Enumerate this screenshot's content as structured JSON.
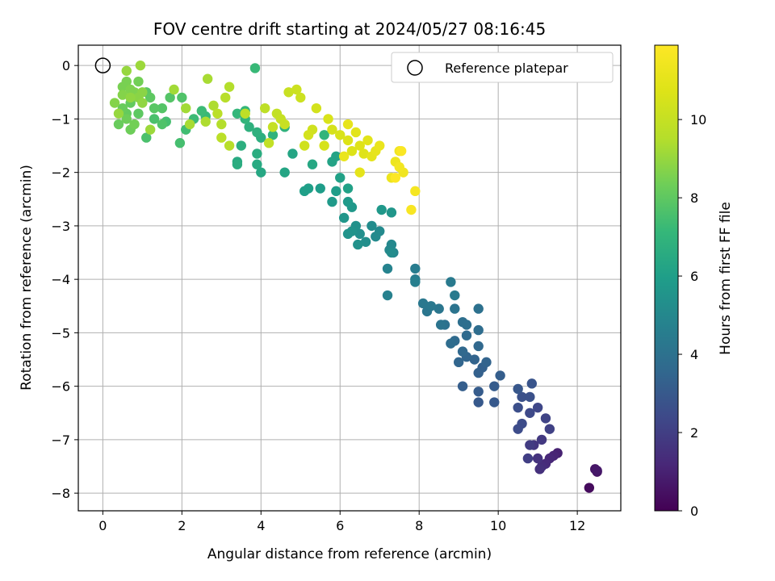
{
  "chart_data": {
    "type": "scatter",
    "title": "FOV centre drift starting at 2024/05/27 08:16:45",
    "xlabel": "Angular distance from reference (arcmin)",
    "ylabel": "Rotation from reference (arcmin)",
    "xlim": [
      -0.62,
      13.1
    ],
    "ylim": [
      -8.33,
      0.38
    ],
    "xticks": [
      0,
      2,
      4,
      6,
      8,
      10,
      12
    ],
    "yticks": [
      0,
      -1,
      -2,
      -3,
      -4,
      -5,
      -6,
      -7,
      -8
    ],
    "grid": true,
    "legend": {
      "position": "top-right",
      "entries": [
        "Reference platepar"
      ]
    },
    "colorbar": {
      "label": "Hours from first FF file",
      "colormap": "viridis",
      "range": [
        0,
        11.9
      ],
      "ticks": [
        0,
        2,
        4,
        6,
        8,
        10
      ]
    },
    "reference_point": {
      "x": 0,
      "y": 0
    },
    "points": [
      [
        12.3,
        -7.9,
        0.3
      ],
      [
        12.5,
        -7.6,
        0.5
      ],
      [
        12.45,
        -7.55,
        0.6
      ],
      [
        12.5,
        -7.58,
        0.7
      ],
      [
        11.5,
        -7.25,
        1.0
      ],
      [
        11.4,
        -7.3,
        1.1
      ],
      [
        11.3,
        -7.35,
        1.2
      ],
      [
        11.2,
        -7.45,
        1.3
      ],
      [
        11.1,
        -7.5,
        1.4
      ],
      [
        11.05,
        -7.55,
        1.5
      ],
      [
        11.0,
        -7.35,
        1.6
      ],
      [
        10.9,
        -7.1,
        1.7
      ],
      [
        11.1,
        -7.0,
        1.8
      ],
      [
        10.8,
        -7.1,
        1.9
      ],
      [
        10.75,
        -7.35,
        2.0
      ],
      [
        11.3,
        -6.8,
        2.1
      ],
      [
        11.2,
        -6.6,
        2.2
      ],
      [
        11.0,
        -6.4,
        2.3
      ],
      [
        10.8,
        -6.5,
        2.4
      ],
      [
        10.6,
        -6.7,
        2.5
      ],
      [
        10.5,
        -6.8,
        2.5
      ],
      [
        10.5,
        -6.4,
        2.6
      ],
      [
        10.6,
        -6.2,
        2.7
      ],
      [
        10.8,
        -6.2,
        2.7
      ],
      [
        10.85,
        -5.95,
        2.8
      ],
      [
        10.5,
        -6.05,
        2.9
      ],
      [
        9.9,
        -6.3,
        3.0
      ],
      [
        9.5,
        -6.3,
        3.0
      ],
      [
        9.5,
        -6.1,
        3.1
      ],
      [
        9.9,
        -6.0,
        3.1
      ],
      [
        9.1,
        -6.0,
        3.2
      ],
      [
        10.05,
        -5.8,
        3.2
      ],
      [
        9.6,
        -5.65,
        3.3
      ],
      [
        9.5,
        -5.75,
        3.3
      ],
      [
        9.7,
        -5.55,
        3.4
      ],
      [
        9.4,
        -5.5,
        3.4
      ],
      [
        9.2,
        -5.45,
        3.5
      ],
      [
        9.0,
        -5.55,
        3.5
      ],
      [
        9.1,
        -5.35,
        3.6
      ],
      [
        9.5,
        -5.25,
        3.6
      ],
      [
        9.2,
        -5.05,
        3.7
      ],
      [
        8.9,
        -5.15,
        3.7
      ],
      [
        8.8,
        -5.2,
        3.8
      ],
      [
        9.5,
        -4.95,
        3.8
      ],
      [
        9.1,
        -4.8,
        3.9
      ],
      [
        9.2,
        -4.85,
        3.9
      ],
      [
        9.5,
        -4.55,
        4.0
      ],
      [
        8.65,
        -4.85,
        4.0
      ],
      [
        8.55,
        -4.85,
        4.1
      ],
      [
        8.9,
        -4.55,
        4.1
      ],
      [
        8.5,
        -4.55,
        4.2
      ],
      [
        8.2,
        -4.6,
        4.2
      ],
      [
        8.3,
        -4.5,
        4.3
      ],
      [
        8.1,
        -4.45,
        4.3
      ],
      [
        8.9,
        -4.3,
        4.4
      ],
      [
        8.8,
        -4.05,
        4.4
      ],
      [
        7.9,
        -3.8,
        4.5
      ],
      [
        7.9,
        -4.0,
        4.5
      ],
      [
        7.9,
        -4.05,
        4.6
      ],
      [
        7.2,
        -4.3,
        4.7
      ],
      [
        7.2,
        -3.8,
        4.8
      ],
      [
        7.35,
        -3.5,
        4.9
      ],
      [
        7.25,
        -3.45,
        5.0
      ],
      [
        7.3,
        -3.35,
        5.0
      ],
      [
        7.0,
        -3.1,
        5.1
      ],
      [
        6.9,
        -3.2,
        5.1
      ],
      [
        7.3,
        -3.5,
        5.2
      ],
      [
        6.8,
        -3.0,
        5.2
      ],
      [
        6.65,
        -3.3,
        5.3
      ],
      [
        6.5,
        -3.15,
        5.3
      ],
      [
        6.45,
        -3.35,
        5.4
      ],
      [
        6.4,
        -3.0,
        5.4
      ],
      [
        6.3,
        -3.1,
        5.5
      ],
      [
        6.2,
        -3.15,
        5.5
      ],
      [
        6.1,
        -2.85,
        5.6
      ],
      [
        7.3,
        -2.75,
        5.6
      ],
      [
        7.05,
        -2.7,
        5.7
      ],
      [
        6.3,
        -2.65,
        5.7
      ],
      [
        6.2,
        -2.55,
        5.8
      ],
      [
        5.8,
        -2.55,
        5.8
      ],
      [
        5.9,
        -2.35,
        5.9
      ],
      [
        5.5,
        -2.3,
        5.9
      ],
      [
        5.2,
        -2.3,
        6.0
      ],
      [
        5.1,
        -2.35,
        6.0
      ],
      [
        6.0,
        -2.1,
        6.1
      ],
      [
        6.2,
        -2.3,
        6.1
      ],
      [
        5.9,
        -1.7,
        6.2
      ],
      [
        5.8,
        -1.8,
        6.2
      ],
      [
        4.6,
        -2.0,
        6.3
      ],
      [
        4.8,
        -1.65,
        6.3
      ],
      [
        5.3,
        -1.85,
        6.4
      ],
      [
        4.0,
        -2.0,
        6.4
      ],
      [
        3.9,
        -1.85,
        6.5
      ],
      [
        3.4,
        -1.8,
        6.5
      ],
      [
        3.4,
        -1.85,
        6.6
      ],
      [
        3.9,
        -1.65,
        6.6
      ],
      [
        3.5,
        -1.5,
        6.7
      ],
      [
        4.0,
        -1.35,
        6.7
      ],
      [
        3.9,
        -1.25,
        6.8
      ],
      [
        3.7,
        -1.15,
        6.8
      ],
      [
        4.3,
        -1.3,
        6.9
      ],
      [
        4.6,
        -1.15,
        6.9
      ],
      [
        5.6,
        -1.3,
        7.0
      ],
      [
        3.6,
        -1.0,
        7.0
      ],
      [
        3.4,
        -0.9,
        7.1
      ],
      [
        3.6,
        -0.85,
        7.1
      ],
      [
        3.85,
        -0.05,
        7.2
      ],
      [
        2.6,
        -0.95,
        7.2
      ],
      [
        2.5,
        -0.85,
        7.3
      ],
      [
        2.3,
        -1.0,
        7.3
      ],
      [
        2.1,
        -1.2,
        7.4
      ],
      [
        1.95,
        -1.45,
        7.5
      ],
      [
        1.6,
        -1.05,
        7.5
      ],
      [
        1.1,
        -1.35,
        7.6
      ],
      [
        1.3,
        -1.0,
        7.6
      ],
      [
        1.5,
        -1.1,
        7.7
      ],
      [
        2.0,
        -0.6,
        7.7
      ],
      [
        1.5,
        -0.8,
        7.8
      ],
      [
        1.7,
        -0.6,
        7.8
      ],
      [
        1.3,
        -0.8,
        7.9
      ],
      [
        1.1,
        -0.5,
        7.9
      ],
      [
        0.9,
        -0.9,
        8.0
      ],
      [
        1.2,
        -0.6,
        8.0
      ],
      [
        0.7,
        -0.7,
        8.1
      ],
      [
        0.6,
        -0.9,
        8.1
      ],
      [
        0.5,
        -0.8,
        8.2
      ],
      [
        0.4,
        -1.1,
        8.2
      ],
      [
        0.7,
        -1.2,
        8.3
      ],
      [
        0.6,
        -1.0,
        8.3
      ],
      [
        0.8,
        -1.1,
        8.4
      ],
      [
        0.9,
        -0.3,
        8.4
      ],
      [
        0.5,
        -0.4,
        8.5
      ],
      [
        0.6,
        -0.3,
        8.5
      ],
      [
        0.7,
        -0.45,
        8.6
      ],
      [
        0.8,
        -0.5,
        8.6
      ],
      [
        0.3,
        -0.7,
        8.7
      ],
      [
        0.5,
        -0.55,
        8.7
      ],
      [
        0.9,
        -0.6,
        8.8
      ],
      [
        1.0,
        -0.5,
        8.8
      ],
      [
        1.0,
        -0.7,
        8.9
      ],
      [
        0.7,
        -0.6,
        8.9
      ],
      [
        0.4,
        -0.9,
        9.0
      ],
      [
        0.6,
        -0.1,
        9.0
      ],
      [
        0.95,
        0.0,
        9.1
      ],
      [
        1.2,
        -1.2,
        9.1
      ],
      [
        1.8,
        -0.45,
        9.2
      ],
      [
        2.1,
        -0.8,
        9.2
      ],
      [
        2.2,
        -1.1,
        9.3
      ],
      [
        2.65,
        -0.25,
        9.3
      ],
      [
        2.6,
        -1.05,
        9.4
      ],
      [
        2.8,
        -0.75,
        9.4
      ],
      [
        3.2,
        -0.4,
        9.5
      ],
      [
        3.0,
        -1.1,
        9.5
      ],
      [
        3.1,
        -0.6,
        9.6
      ],
      [
        3.2,
        -1.5,
        9.6
      ],
      [
        3.0,
        -1.35,
        9.7
      ],
      [
        2.9,
        -0.9,
        9.7
      ],
      [
        3.6,
        -0.9,
        9.8
      ],
      [
        4.1,
        -0.8,
        9.8
      ],
      [
        4.2,
        -1.45,
        9.9
      ],
      [
        4.4,
        -0.9,
        9.9
      ],
      [
        4.5,
        -1.0,
        10.0
      ],
      [
        4.3,
        -1.15,
        10.0
      ],
      [
        4.6,
        -1.1,
        10.1
      ],
      [
        4.7,
        -0.5,
        10.1
      ],
      [
        4.9,
        -0.45,
        10.2
      ],
      [
        5.0,
        -0.6,
        10.2
      ],
      [
        5.1,
        -1.5,
        10.3
      ],
      [
        5.3,
        -1.2,
        10.3
      ],
      [
        5.4,
        -0.8,
        10.4
      ],
      [
        5.2,
        -1.3,
        10.4
      ],
      [
        5.6,
        -1.5,
        10.5
      ],
      [
        5.8,
        -1.2,
        10.5
      ],
      [
        6.0,
        -1.3,
        10.6
      ],
      [
        5.7,
        -1.0,
        10.6
      ],
      [
        6.2,
        -1.4,
        10.7
      ],
      [
        6.3,
        -1.6,
        10.7
      ],
      [
        6.5,
        -1.5,
        10.8
      ],
      [
        6.6,
        -1.65,
        10.8
      ],
      [
        6.4,
        -1.25,
        10.9
      ],
      [
        6.7,
        -1.4,
        10.9
      ],
      [
        6.5,
        -2.0,
        11.0
      ],
      [
        6.8,
        -1.7,
        11.0
      ],
      [
        6.9,
        -1.6,
        11.1
      ],
      [
        6.2,
        -1.1,
        11.1
      ],
      [
        7.0,
        -1.5,
        11.2
      ],
      [
        6.1,
        -1.7,
        11.2
      ],
      [
        7.4,
        -1.8,
        11.3
      ],
      [
        7.3,
        -2.1,
        11.3
      ],
      [
        7.5,
        -1.6,
        11.4
      ],
      [
        7.6,
        -2.0,
        11.4
      ],
      [
        7.5,
        -1.9,
        11.5
      ],
      [
        7.9,
        -2.35,
        11.6
      ],
      [
        7.8,
        -2.7,
        11.7
      ],
      [
        7.55,
        -1.6,
        11.8
      ],
      [
        7.4,
        -2.1,
        11.85
      ]
    ]
  }
}
